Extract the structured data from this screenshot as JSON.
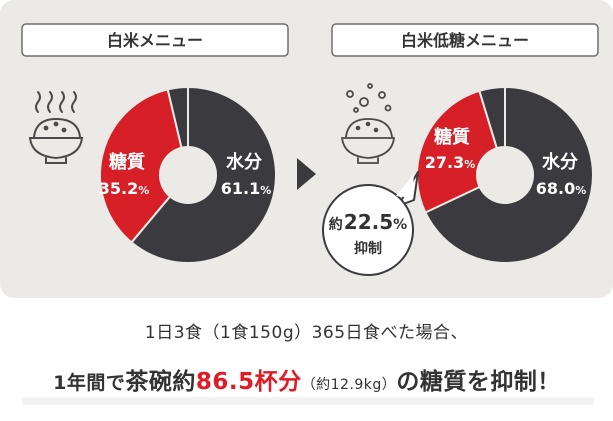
{
  "colors": {
    "sugar": "#d71f27",
    "water": "#3a3a3f",
    "other": "#3a3a3f",
    "panel": "#eceae6"
  },
  "icons": [
    "steaming-rice-bowl-icon",
    "bubbling-rice-bowl-icon",
    "arrow-right-icon",
    "speech-bubble-icon"
  ],
  "chart_data": [
    {
      "type": "pie",
      "title": "白米メニュー",
      "slices": [
        {
          "label": "糖質",
          "value": 35.2,
          "display": "35.2",
          "unit": "%"
        },
        {
          "label": "水分",
          "value": 61.1,
          "display": "61.1",
          "unit": "%"
        },
        {
          "label": "",
          "value": 3.7
        }
      ]
    },
    {
      "type": "pie",
      "title": "白米低糖メニュー",
      "slices": [
        {
          "label": "糖質",
          "value": 27.3,
          "display": "27.3",
          "unit": "%"
        },
        {
          "label": "水分",
          "value": 68.0,
          "display": "68.0",
          "unit": "%"
        },
        {
          "label": "",
          "value": 4.7
        }
      ]
    }
  ],
  "callout": {
    "prefix": "約",
    "value": "22.5",
    "unit": "%",
    "label": "抑制"
  },
  "summary": {
    "line1": "1日3食（1食150g）365日食べた場合、",
    "line2_a": "1年間で",
    "line2_b": "茶碗約",
    "line2_c": "86.5杯分",
    "line2_d": "（約12.9kg）",
    "line2_e": "の糖質を抑制",
    "line2_f": "！"
  }
}
